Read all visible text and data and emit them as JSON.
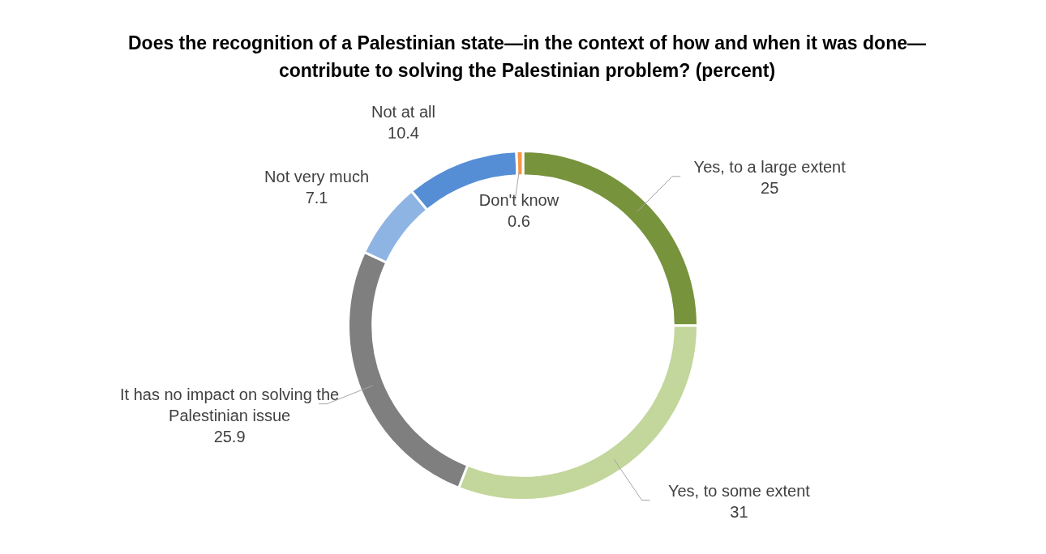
{
  "chart_data": {
    "type": "donut",
    "title": "Does the recognition of a Palestinian state—in the context of how and when it was done—contribute to solving the Palestinian problem? (percent)",
    "categories": [
      "Yes, to a large extent",
      "Yes, to some extent",
      "It has no impact on solving the Palestinian issue",
      "Not very much",
      "Not at all",
      "Don't know"
    ],
    "values": [
      25,
      31,
      25.9,
      7.1,
      10.4,
      0.6
    ],
    "colors": [
      "#77933c",
      "#c3d69b",
      "#7f7f7f",
      "#8eb4e3",
      "#558ed5",
      "#f79646"
    ],
    "data_labels": true,
    "legend": false
  }
}
